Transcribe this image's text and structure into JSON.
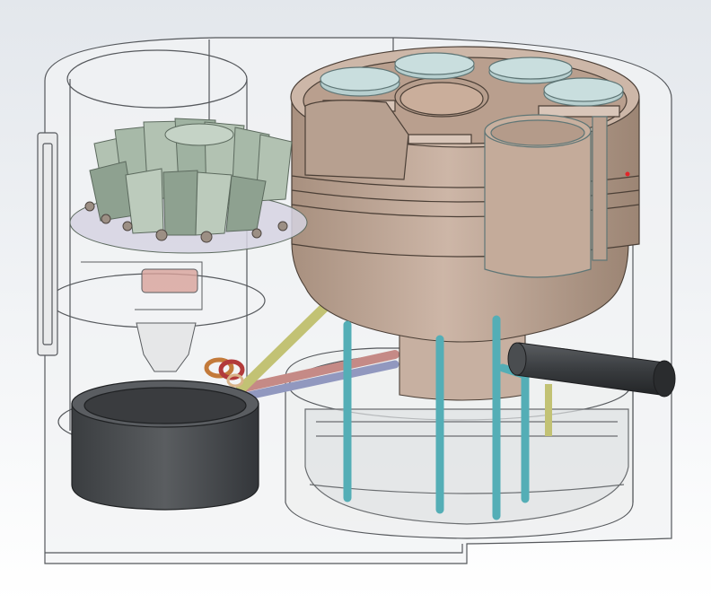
{
  "viewport": {
    "background_top": "#e3e7ec",
    "background_bottom": "#ffffff"
  },
  "colors": {
    "housing_glass": "#f2f3f4",
    "housing_edge": "#55585c",
    "carousel_body": "#c3ab9b",
    "carousel_shade": "#a8907f",
    "carousel_light": "#d8c4b6",
    "vial": "#b7cfcf",
    "vial_rim": "#5f7676",
    "turbine_vane": "#b2c2b2",
    "turbine_vane_dark": "#8ea190",
    "cyan_tube": "#54aeb6",
    "yellow_tube": "#c2c274",
    "red_tube": "#c58a86",
    "blue_tube": "#9198bf",
    "dark_pipe": "#3c3f42",
    "ring_orange": "#c37a3a",
    "ring_red": "#b23a3a",
    "black_cup": "#45484b",
    "funnel_pink": "#d8a19a"
  },
  "parts": {
    "housing": "outer-housing",
    "carousel": "sample-carousel",
    "turbine": "radial-turbine",
    "cup": "collection-cup",
    "reservoir": "bottom-reservoir",
    "dark_pipe": "exhaust-pipe",
    "vials": [
      "vial-1",
      "vial-2",
      "vial-3",
      "vial-4",
      "vial-5",
      "vial-6"
    ]
  }
}
